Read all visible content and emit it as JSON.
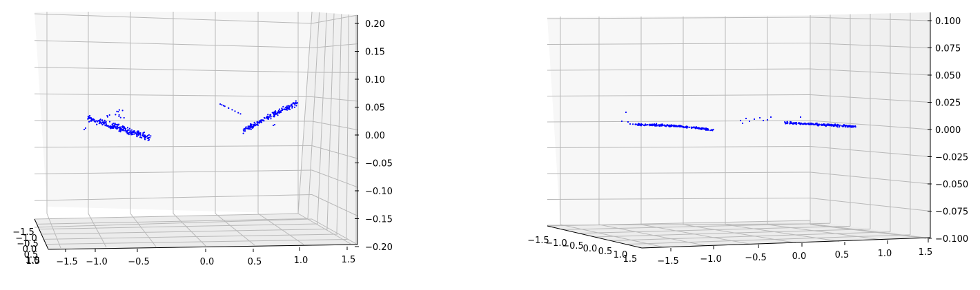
{
  "chart_data": [
    {
      "type": "scatter",
      "projection": "3d",
      "view": "near-front",
      "marker_color": "#0000ff",
      "x_ticks": [
        "−1.5",
        "−1.0",
        "−0.5",
        "0.0",
        "0.5",
        "1.0",
        "1.5"
      ],
      "y_ticks": [
        "−1.5",
        "−1.0",
        "−0.5",
        "0.0",
        "0.5",
        "1.0",
        "1.5"
      ],
      "z_ticks": [
        "0.20",
        "0.15",
        "0.10",
        "0.05",
        "0.00",
        "−0.05",
        "−0.10",
        "−0.15",
        "−0.20"
      ],
      "xlim": [
        -1.6,
        1.6
      ],
      "zlim": [
        -0.2,
        0.2
      ],
      "clusters": [
        {
          "x_range": [
            -1.45,
            -0.55
          ],
          "z_range": [
            -0.01,
            0.035
          ]
        },
        {
          "x_range": [
            0.45,
            1.35
          ],
          "z_range": [
            0.0,
            0.06
          ]
        }
      ],
      "grid": true
    },
    {
      "type": "scatter",
      "projection": "3d",
      "view": "oblique",
      "marker_color": "#0000ff",
      "x_ticks": [
        "−1.5",
        "−1.0",
        "−0.5",
        "0.0",
        "0.5",
        "1.0",
        "1.5"
      ],
      "y_ticks": [
        "−1.5",
        "−1.0",
        "−0.5",
        "0.0",
        "0.5",
        "1.0",
        "1.5"
      ],
      "z_ticks": [
        "0.100",
        "0.075",
        "0.050",
        "0.025",
        "0.000",
        "−0.025",
        "−0.050",
        "−0.075",
        "−0.100"
      ],
      "xlim": [
        -1.6,
        1.6
      ],
      "zlim": [
        -0.1,
        0.1
      ],
      "clusters": [
        {
          "x_range": [
            -1.4,
            -0.2
          ],
          "z_range": [
            -0.004,
            0.006
          ]
        },
        {
          "x_range": [
            0.1,
            1.2
          ],
          "z_range": [
            -0.003,
            0.005
          ]
        }
      ],
      "grid": true
    }
  ]
}
